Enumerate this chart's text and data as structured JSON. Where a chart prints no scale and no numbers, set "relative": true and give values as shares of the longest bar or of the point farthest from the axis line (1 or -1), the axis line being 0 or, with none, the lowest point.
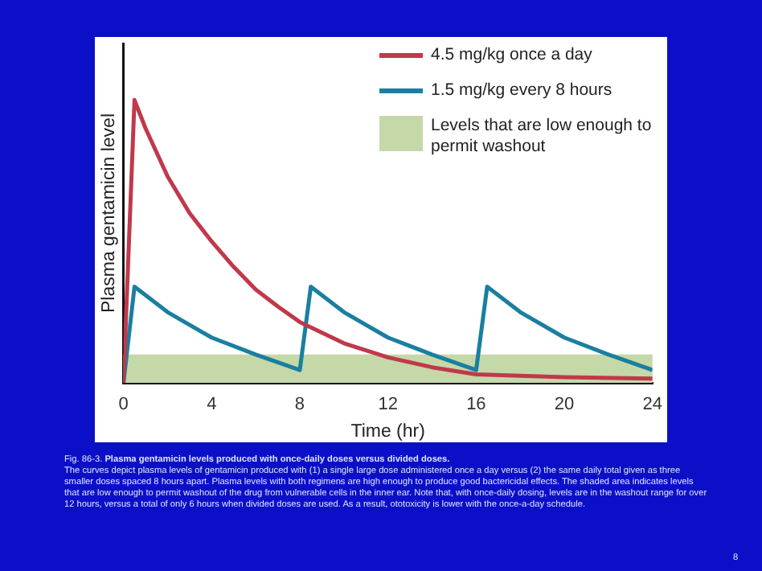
{
  "chart_data": {
    "type": "line",
    "xlabel": "Time (hr)",
    "ylabel": "Plasma gentamicin level",
    "relative": true,
    "xlim": [
      0,
      24
    ],
    "xticks": [
      0,
      4,
      8,
      12,
      16,
      20,
      24
    ],
    "grid": false,
    "legend": "top right",
    "marker": "none",
    "line_style": "solid",
    "series": [
      {
        "name": "4.5 mg/kg once a day",
        "color": "#c0394b",
        "x": [
          0,
          0.5,
          1,
          2,
          3,
          4,
          5,
          6,
          7,
          8,
          10,
          12,
          14,
          16,
          20,
          24
        ],
        "values": [
          0,
          1,
          0.9,
          0.73,
          0.6,
          0.5,
          0.41,
          0.33,
          0.27,
          0.215,
          0.14,
          0.09,
          0.055,
          0.03,
          0.02,
          0.015
        ]
      },
      {
        "name": "1.5 mg/kg every 8 hours",
        "color": "#1a7fa0",
        "x": [
          0,
          0.5,
          2,
          4,
          6,
          8,
          8.5,
          10,
          12,
          14,
          16,
          16.5,
          18,
          20,
          22,
          24
        ],
        "values": [
          0,
          0.34,
          0.25,
          0.16,
          0.1,
          0.045,
          0.34,
          0.25,
          0.16,
          0.1,
          0.045,
          0.34,
          0.25,
          0.16,
          0.1,
          0.045
        ]
      }
    ],
    "bands": [
      {
        "axis": "y",
        "from": 0,
        "to": 0.1,
        "label": "Levels that are low enough to permit washout",
        "color": "#c5d8a8"
      }
    ],
    "annotations": [
      "Fig. 86-3.",
      "Plasma gentamicin levels produced with once-daily doses versus divided doses.",
      "The curves depict plasma levels of gentamicin produced with (1) a single large dose administered once a day versus (2) the same daily total given as three smaller doses spaced 8 hours apart. Plasma levels with both regimens are high enough to produce good bactericidal effects. The shaded area indicates levels that are low enough to permit washout of the drug from vulnerable cells in the inner ear. Note that, with once-daily dosing, levels are in the washout range for over 12 hours, versus a total of only 6 hours when divided doses are used. As a result, ototoxicity is lower with the once-a-day schedule.",
      "8"
    ]
  }
}
